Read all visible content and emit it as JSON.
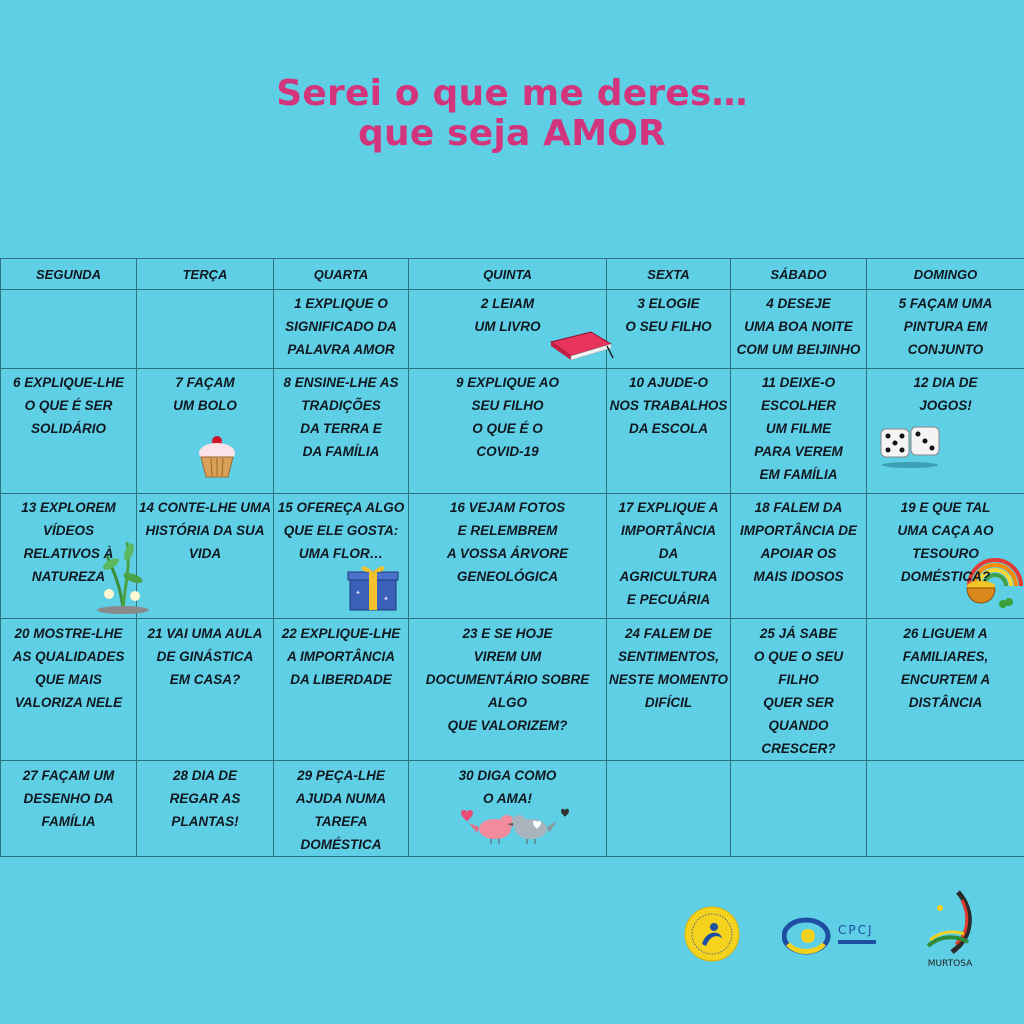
{
  "title": {
    "line1": "Serei o que me deres…",
    "line2": "que seja AMOR"
  },
  "calendar": {
    "headers": [
      "SEGUNDA",
      "TERÇA",
      "QUARTA",
      "QUINTA",
      "SEXTA",
      "SÁBADO",
      "DOMINGO"
    ],
    "rows": [
      [
        "",
        "",
        "1 Explique o\nsignificado da\npalavra AMOR",
        "2 Leiam\num livro",
        "3 Elogie\no seu filho",
        "4 Deseje\numa boa noite\ncom um beijinho",
        "5 Façam uma\npintura em\nconjunto"
      ],
      [
        "6 Explique-lhe\no que é ser\nsolidário",
        "7 Façam\num bolo",
        "8 Ensine-lhe as\ntradições\nda terra e\nda família",
        "9 Explique ao\nseu filho\no que é o\nCOVID-19",
        "10 Ajude-o\nnos trabalhos\nda escola",
        "11 Deixe-o\nescolher\num filme\npara verem\nem família",
        "12 Dia de\njogos!"
      ],
      [
        "13 Explorem\nvídeos relativos à\nnatureza",
        "14 Conte-lhe uma\nhistória da sua\nvida",
        "15 Ofereça algo\nque ele gosta:\numa flor…",
        "16 Vejam fotos\ne relembrem\na vossa árvore\ngeneológica",
        "17 Explique a\nimportância\nda agricultura\ne pecuária",
        "18 Falem da\nimportância de\napoiar os\nmais idosos",
        "19 E que tal\numa caça ao tesouro\ndoméstica?"
      ],
      [
        "20 Mostre-lhe\nas qualidades\nque mais\nvaloriza nele",
        "21 Vai uma aula\nde ginástica\nem casa?",
        "22 Explique-lhe\na importância\nda liberdade",
        "23 E se hoje\nvirem um\ndocumentário sobre algo\nque valorizem?",
        "24 Falem de\nsentimentos,\nneste momento\ndifícil",
        "25 Já sabe\no que o seu filho\nquer ser\nquando crescer?",
        "26 Liguem a\nfamiliares,\nencurtem a\ndistância"
      ],
      [
        "27 Façam um\ndesenho da\nfamília",
        "28 Dia de\nregar as\nplantas!",
        "29 Peça-lhe\najuda numa\ntarefa doméstica",
        "30 Diga como\no ama!",
        "",
        "",
        ""
      ]
    ]
  },
  "icons": {
    "book": "book-icon",
    "cupcake": "cupcake-icon",
    "dice": "dice-icon",
    "plant": "plant-icon",
    "gift": "gift-icon",
    "rainbow_pot": "rainbow-pot-icon",
    "birds": "love-birds-icon"
  },
  "logos": {
    "cpcj_text": "CPCJ",
    "murtosa_text": "MURTOSA"
  },
  "colors": {
    "background": "#5fcfe6",
    "title": "#d2357c",
    "grid": "#2e6f80"
  }
}
